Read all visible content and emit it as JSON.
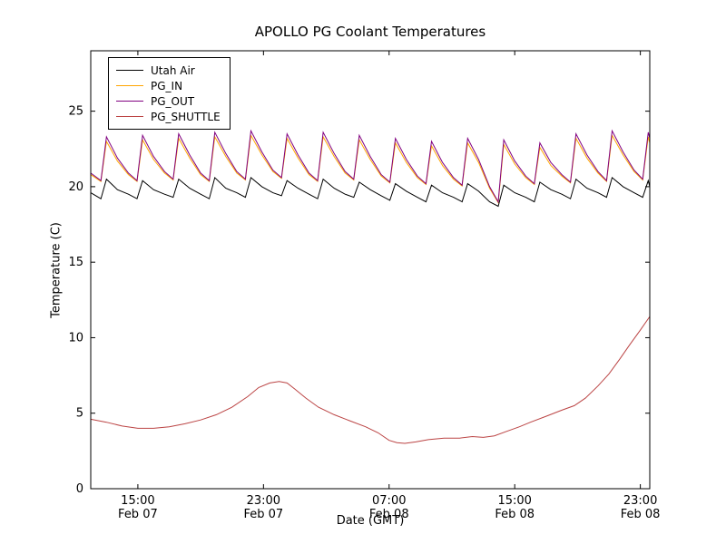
{
  "title": "APOLLO PG Coolant Temperatures",
  "chart_data": {
    "type": "line",
    "title": "APOLLO PG Coolant Temperatures",
    "xlabel": "Date (GMT)",
    "ylabel": "Temperature (C)",
    "x_unit": "hours since Feb 07 12:00 GMT",
    "xlim": [
      0,
      35.6
    ],
    "ylim": [
      0,
      29
    ],
    "grid": false,
    "legend_position": "upper-left",
    "y_ticks": [
      0,
      5,
      10,
      15,
      20,
      25
    ],
    "x_ticks": [
      {
        "t": 3,
        "time": "15:00",
        "date": "Feb 07"
      },
      {
        "t": 11,
        "time": "23:00",
        "date": "Feb 07"
      },
      {
        "t": 19,
        "time": "07:00",
        "date": "Feb 08"
      },
      {
        "t": 27,
        "time": "15:00",
        "date": "Feb 08"
      },
      {
        "t": 35,
        "time": "23:00",
        "date": "Feb 08"
      }
    ],
    "series": [
      {
        "name": "Utah Air",
        "color": "#000000",
        "points": [
          [
            0,
            19.6
          ],
          [
            0.65,
            19.2
          ],
          [
            1,
            20.5
          ],
          [
            1.7,
            19.8
          ],
          [
            2.4,
            19.5
          ],
          [
            2.95,
            19.2
          ],
          [
            3.3,
            20.4
          ],
          [
            4,
            19.8
          ],
          [
            4.7,
            19.5
          ],
          [
            5.25,
            19.3
          ],
          [
            5.6,
            20.5
          ],
          [
            6.3,
            19.9
          ],
          [
            7,
            19.5
          ],
          [
            7.55,
            19.2
          ],
          [
            7.9,
            20.6
          ],
          [
            8.6,
            19.9
          ],
          [
            9.3,
            19.6
          ],
          [
            9.85,
            19.3
          ],
          [
            10.2,
            20.6
          ],
          [
            10.9,
            20
          ],
          [
            11.6,
            19.6
          ],
          [
            12.15,
            19.4
          ],
          [
            12.5,
            20.4
          ],
          [
            13.2,
            19.9
          ],
          [
            13.9,
            19.5
          ],
          [
            14.45,
            19.2
          ],
          [
            14.8,
            20.5
          ],
          [
            15.5,
            19.9
          ],
          [
            16.2,
            19.5
          ],
          [
            16.75,
            19.3
          ],
          [
            17.1,
            20.3
          ],
          [
            17.8,
            19.8
          ],
          [
            18.5,
            19.4
          ],
          [
            19.05,
            19.1
          ],
          [
            19.4,
            20.2
          ],
          [
            20.1,
            19.7
          ],
          [
            20.8,
            19.3
          ],
          [
            21.35,
            19
          ],
          [
            21.7,
            20.1
          ],
          [
            22.4,
            19.6
          ],
          [
            23.1,
            19.3
          ],
          [
            23.65,
            19
          ],
          [
            24,
            20.2
          ],
          [
            24.7,
            19.7
          ],
          [
            25.4,
            19
          ],
          [
            25.95,
            18.7
          ],
          [
            26.3,
            20.1
          ],
          [
            27,
            19.6
          ],
          [
            27.7,
            19.3
          ],
          [
            28.25,
            19
          ],
          [
            28.6,
            20.3
          ],
          [
            29.3,
            19.8
          ],
          [
            30,
            19.5
          ],
          [
            30.55,
            19.2
          ],
          [
            30.9,
            20.5
          ],
          [
            31.6,
            19.9
          ],
          [
            32.3,
            19.6
          ],
          [
            32.85,
            19.3
          ],
          [
            33.2,
            20.6
          ],
          [
            33.9,
            20
          ],
          [
            34.6,
            19.6
          ],
          [
            35.15,
            19.3
          ],
          [
            35.5,
            20.4
          ],
          [
            35.6,
            20
          ]
        ]
      },
      {
        "name": "PG_IN",
        "color": "#ffa500",
        "points": [
          [
            0,
            20.8
          ],
          [
            0.65,
            20.35
          ],
          [
            1,
            23
          ],
          [
            1.7,
            21.7
          ],
          [
            2.4,
            20.8
          ],
          [
            2.95,
            20.35
          ],
          [
            3.3,
            23.1
          ],
          [
            4,
            21.8
          ],
          [
            4.7,
            20.9
          ],
          [
            5.25,
            20.45
          ],
          [
            5.6,
            23.2
          ],
          [
            6.3,
            21.9
          ],
          [
            7,
            20.8
          ],
          [
            7.55,
            20.35
          ],
          [
            7.9,
            23.3
          ],
          [
            8.6,
            22
          ],
          [
            9.3,
            20.9
          ],
          [
            9.85,
            20.45
          ],
          [
            10.2,
            23.4
          ],
          [
            10.9,
            22.1
          ],
          [
            11.6,
            21
          ],
          [
            12.15,
            20.55
          ],
          [
            12.5,
            23.2
          ],
          [
            13.2,
            21.9
          ],
          [
            13.9,
            20.8
          ],
          [
            14.45,
            20.35
          ],
          [
            14.8,
            23.3
          ],
          [
            15.5,
            22
          ],
          [
            16.2,
            20.9
          ],
          [
            16.75,
            20.45
          ],
          [
            17.1,
            23.1
          ],
          [
            17.8,
            21.8
          ],
          [
            18.5,
            20.7
          ],
          [
            19.05,
            20.25
          ],
          [
            19.4,
            22.9
          ],
          [
            20.1,
            21.6
          ],
          [
            20.8,
            20.6
          ],
          [
            21.35,
            20.15
          ],
          [
            21.7,
            22.7
          ],
          [
            22.4,
            21.4
          ],
          [
            23.1,
            20.5
          ],
          [
            23.65,
            20.05
          ],
          [
            24,
            22.9
          ],
          [
            24.7,
            21.6
          ],
          [
            25.4,
            19.9
          ],
          [
            25.95,
            18.95
          ],
          [
            26.3,
            22.8
          ],
          [
            27,
            21.5
          ],
          [
            27.7,
            20.6
          ],
          [
            28.25,
            20.15
          ],
          [
            28.6,
            22.6
          ],
          [
            29.3,
            21.4
          ],
          [
            30,
            20.7
          ],
          [
            30.55,
            20.25
          ],
          [
            30.9,
            23.2
          ],
          [
            31.6,
            21.9
          ],
          [
            32.3,
            20.9
          ],
          [
            32.85,
            20.35
          ],
          [
            33.2,
            23.4
          ],
          [
            33.9,
            22.1
          ],
          [
            34.6,
            21
          ],
          [
            35.15,
            20.45
          ],
          [
            35.5,
            23.3
          ],
          [
            35.6,
            22.9
          ]
        ]
      },
      {
        "name": "PG_OUT",
        "color": "#800080",
        "points": [
          [
            0,
            20.9
          ],
          [
            0.65,
            20.4
          ],
          [
            1,
            23.3
          ],
          [
            1.7,
            21.9
          ],
          [
            2.4,
            20.9
          ],
          [
            2.95,
            20.4
          ],
          [
            3.3,
            23.4
          ],
          [
            4,
            22
          ],
          [
            4.7,
            21
          ],
          [
            5.25,
            20.5
          ],
          [
            5.6,
            23.5
          ],
          [
            6.3,
            22.1
          ],
          [
            7,
            20.9
          ],
          [
            7.55,
            20.4
          ],
          [
            7.9,
            23.6
          ],
          [
            8.6,
            22.2
          ],
          [
            9.3,
            21
          ],
          [
            9.85,
            20.5
          ],
          [
            10.2,
            23.7
          ],
          [
            10.9,
            22.3
          ],
          [
            11.6,
            21.1
          ],
          [
            12.15,
            20.6
          ],
          [
            12.5,
            23.5
          ],
          [
            13.2,
            22.1
          ],
          [
            13.9,
            20.9
          ],
          [
            14.45,
            20.4
          ],
          [
            14.8,
            23.6
          ],
          [
            15.5,
            22.2
          ],
          [
            16.2,
            21
          ],
          [
            16.75,
            20.5
          ],
          [
            17.1,
            23.4
          ],
          [
            17.8,
            22
          ],
          [
            18.5,
            20.8
          ],
          [
            19.05,
            20.3
          ],
          [
            19.4,
            23.2
          ],
          [
            20.1,
            21.8
          ],
          [
            20.8,
            20.7
          ],
          [
            21.35,
            20.2
          ],
          [
            21.7,
            23
          ],
          [
            22.4,
            21.6
          ],
          [
            23.1,
            20.6
          ],
          [
            23.65,
            20.1
          ],
          [
            24,
            23.2
          ],
          [
            24.7,
            21.8
          ],
          [
            25.4,
            20
          ],
          [
            25.95,
            19
          ],
          [
            26.3,
            23.1
          ],
          [
            27,
            21.7
          ],
          [
            27.7,
            20.7
          ],
          [
            28.25,
            20.2
          ],
          [
            28.6,
            22.9
          ],
          [
            29.3,
            21.6
          ],
          [
            30,
            20.8
          ],
          [
            30.55,
            20.3
          ],
          [
            30.9,
            23.5
          ],
          [
            31.6,
            22.1
          ],
          [
            32.3,
            21
          ],
          [
            32.85,
            20.4
          ],
          [
            33.2,
            23.7
          ],
          [
            33.9,
            22.3
          ],
          [
            34.6,
            21.1
          ],
          [
            35.15,
            20.5
          ],
          [
            35.5,
            23.6
          ],
          [
            35.6,
            23.2
          ]
        ]
      },
      {
        "name": "PG_SHUTTLE",
        "color": "#bb4444",
        "points": [
          [
            0,
            4.6
          ],
          [
            1,
            4.4
          ],
          [
            2,
            4.15
          ],
          [
            3,
            4
          ],
          [
            4,
            4
          ],
          [
            5,
            4.1
          ],
          [
            6,
            4.3
          ],
          [
            7,
            4.55
          ],
          [
            8,
            4.9
          ],
          [
            9,
            5.4
          ],
          [
            10,
            6.1
          ],
          [
            10.7,
            6.7
          ],
          [
            11.4,
            7
          ],
          [
            12,
            7.1
          ],
          [
            12.5,
            7
          ],
          [
            13,
            6.6
          ],
          [
            13.7,
            6
          ],
          [
            14.5,
            5.4
          ],
          [
            15.5,
            4.9
          ],
          [
            16.5,
            4.5
          ],
          [
            17.5,
            4.1
          ],
          [
            18.3,
            3.7
          ],
          [
            19,
            3.2
          ],
          [
            19.5,
            3.05
          ],
          [
            20,
            3
          ],
          [
            20.7,
            3.1
          ],
          [
            21.5,
            3.25
          ],
          [
            22.5,
            3.35
          ],
          [
            23.5,
            3.35
          ],
          [
            24.3,
            3.45
          ],
          [
            25,
            3.4
          ],
          [
            25.7,
            3.5
          ],
          [
            26.5,
            3.8
          ],
          [
            27.3,
            4.1
          ],
          [
            28,
            4.4
          ],
          [
            29,
            4.8
          ],
          [
            30,
            5.2
          ],
          [
            30.8,
            5.5
          ],
          [
            31.5,
            6
          ],
          [
            32.3,
            6.8
          ],
          [
            33,
            7.6
          ],
          [
            33.7,
            8.6
          ],
          [
            34.3,
            9.5
          ],
          [
            35,
            10.5
          ],
          [
            35.6,
            11.4
          ]
        ]
      }
    ]
  }
}
